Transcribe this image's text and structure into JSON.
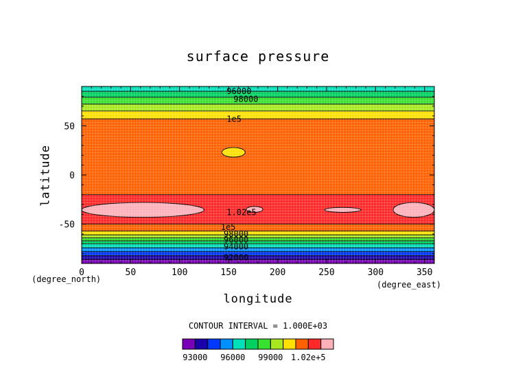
{
  "chart_data": {
    "type": "heatmap",
    "subtype": "filled-contour",
    "title": "surface pressure",
    "xlabel": "longitude",
    "ylabel": "latitude",
    "x_unit": "(degree_east)",
    "y_unit": "(degree_north)",
    "xlim": [
      0,
      360
    ],
    "ylim": [
      -90,
      90
    ],
    "x_ticks": [
      0,
      50,
      100,
      150,
      200,
      250,
      300,
      350
    ],
    "y_ticks": [
      -50,
      0,
      50
    ],
    "grid": true,
    "contour_interval_label": "CONTOUR INTERVAL = 1.000E+03",
    "contour_levels": [
      92000,
      93000,
      94000,
      95000,
      96000,
      97000,
      98000,
      99000,
      100000,
      101000,
      102000
    ],
    "bands": [
      {
        "lat_range": [
          -90,
          -86
        ],
        "level": 92000
      },
      {
        "lat_range": [
          -86,
          -82
        ],
        "level": 93000
      },
      {
        "lat_range": [
          -82,
          -78
        ],
        "level": 94000
      },
      {
        "lat_range": [
          -78,
          -74
        ],
        "level": 95000
      },
      {
        "lat_range": [
          -74,
          -70
        ],
        "level": 96000
      },
      {
        "lat_range": [
          -70,
          -67
        ],
        "level": 97000
      },
      {
        "lat_range": [
          -67,
          -64
        ],
        "level": 98000
      },
      {
        "lat_range": [
          -64,
          -61
        ],
        "level": 99000
      },
      {
        "lat_range": [
          -61,
          -57
        ],
        "level": 100000
      },
      {
        "lat_range": [
          -57,
          -50
        ],
        "level": 101000
      },
      {
        "lat_range": [
          -50,
          -20
        ],
        "level": 102000
      },
      {
        "lat_range": [
          -20,
          57
        ],
        "level": 101000
      },
      {
        "lat_range": [
          57,
          65
        ],
        "level": 100000
      },
      {
        "lat_range": [
          65,
          72
        ],
        "level": 99000
      },
      {
        "lat_range": [
          72,
          79
        ],
        "level": 98000
      },
      {
        "lat_range": [
          79,
          85
        ],
        "level": 97000
      },
      {
        "lat_range": [
          85,
          90
        ],
        "level": 96000
      }
    ],
    "high_patches": [
      {
        "lon_range": [
          0,
          125
        ],
        "lat_range": [
          -43,
          -28
        ],
        "level": 103000
      },
      {
        "lon_range": [
          168,
          185
        ],
        "lat_range": [
          -38,
          -32
        ],
        "level": 103000
      },
      {
        "lon_range": [
          248,
          285
        ],
        "lat_range": [
          -38,
          -33
        ],
        "level": 103000
      },
      {
        "lon_range": [
          318,
          360
        ],
        "lat_range": [
          -43,
          -28
        ],
        "level": 103000
      }
    ],
    "local_features": [
      {
        "lon": 155,
        "lat": 23,
        "level": 100000,
        "description": "small closed contour"
      }
    ],
    "contour_labels": [
      {
        "text": "96000",
        "lon": 148,
        "lat": 85
      },
      {
        "text": "98000",
        "lon": 155,
        "lat": 77
      },
      {
        "text": "1e5",
        "lon": 148,
        "lat": 57
      },
      {
        "text": "1.02e5",
        "lon": 148,
        "lat": -38
      },
      {
        "text": "1e5",
        "lon": 142,
        "lat": -53
      },
      {
        "text": "98000",
        "lon": 145,
        "lat": -60
      },
      {
        "text": "96000",
        "lon": 145,
        "lat": -66
      },
      {
        "text": "94000",
        "lon": 145,
        "lat": -73
      },
      {
        "text": "92000",
        "lon": 145,
        "lat": -84
      }
    ],
    "colorbar": {
      "levels": [
        92000,
        93000,
        94000,
        95000,
        96000,
        97000,
        98000,
        99000,
        100000,
        101000,
        102000,
        103000
      ],
      "tick_labels": [
        {
          "value": 93000,
          "text": "93000"
        },
        {
          "value": 96000,
          "text": "96000"
        },
        {
          "value": 99000,
          "text": "99000"
        },
        {
          "value": 102000,
          "text": "1.02e+5"
        }
      ]
    },
    "palette": {
      "92000": "#7a00b8",
      "93000": "#1a00a8",
      "94000": "#0038ff",
      "95000": "#0090ff",
      "96000": "#00e0b8",
      "97000": "#00d060",
      "98000": "#38e030",
      "99000": "#a8e820",
      "100000": "#ffe000",
      "101000": "#ff6000",
      "102000": "#ff2828",
      "103000": "#ffb0b8"
    }
  }
}
